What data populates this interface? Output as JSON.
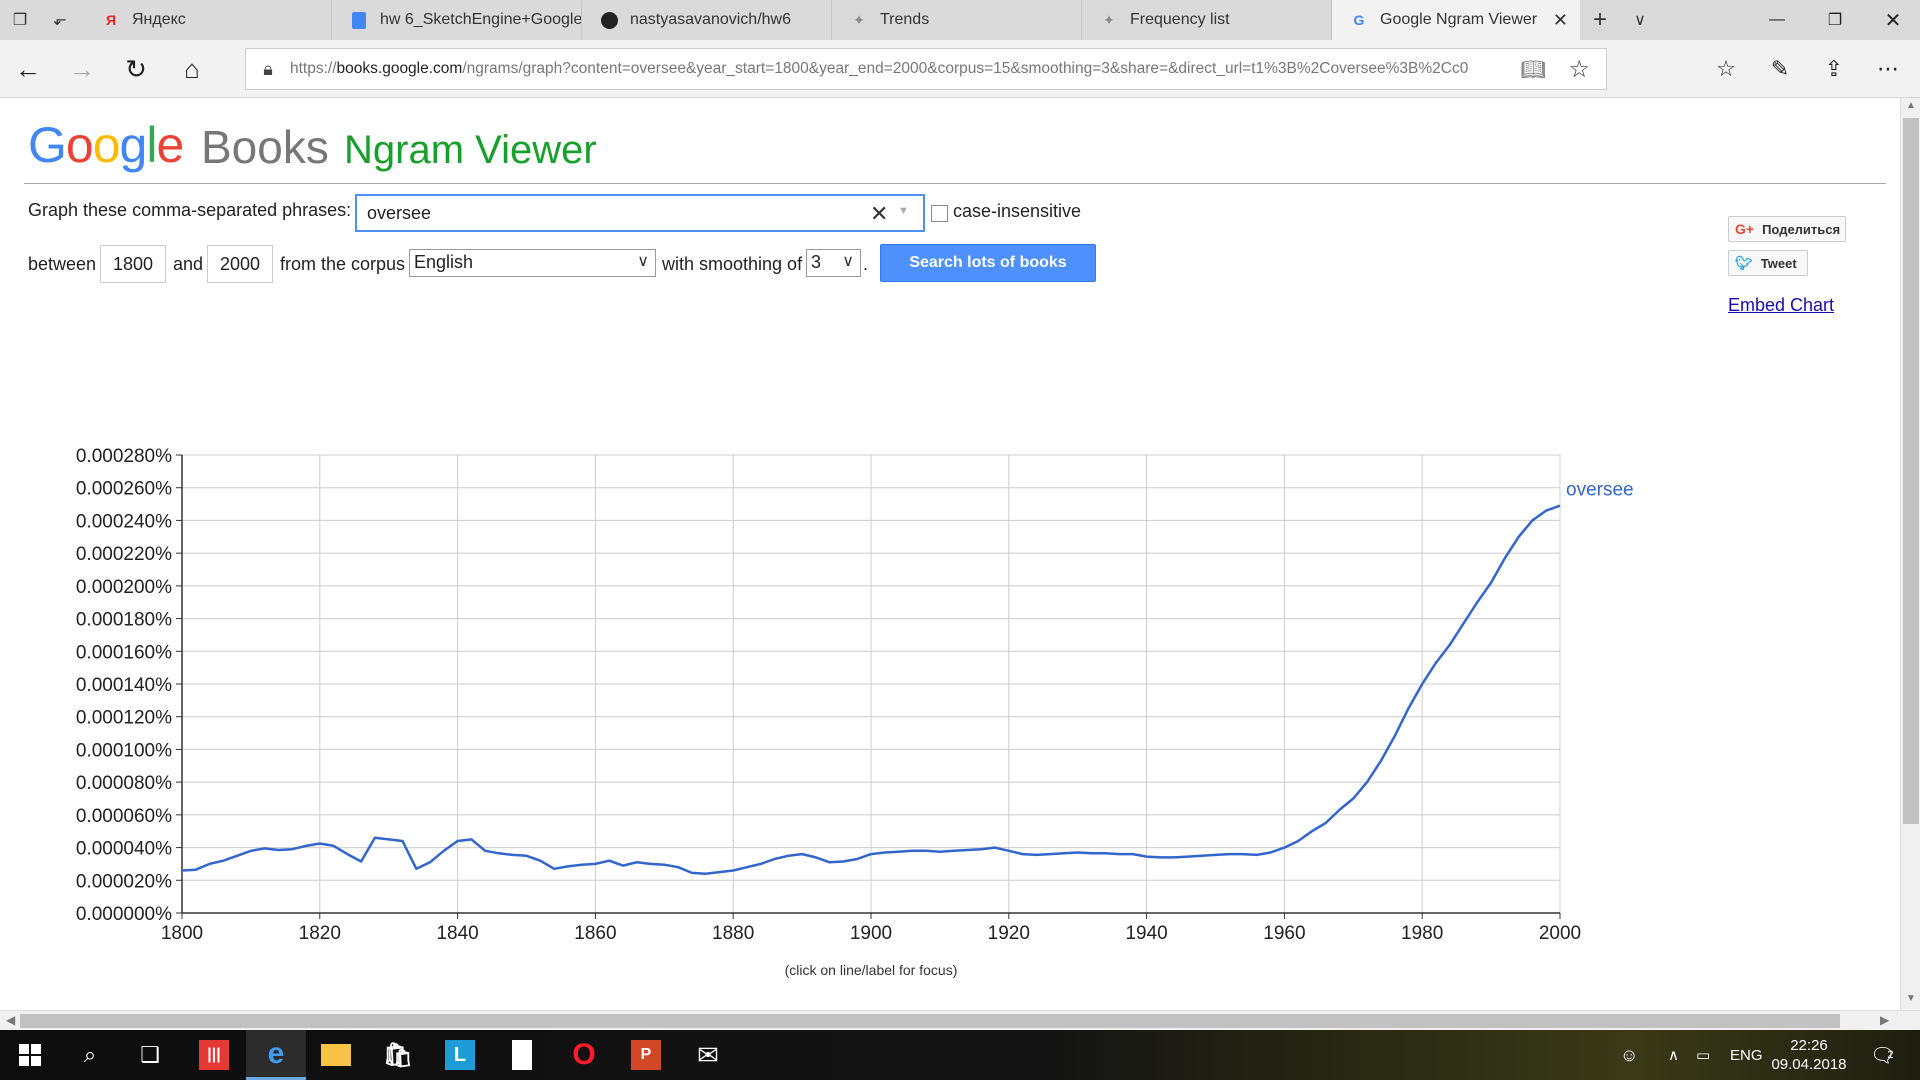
{
  "browser": {
    "tabs": [
      {
        "label": "Яндекс",
        "icon": "yandex-icon"
      },
      {
        "label": "hw 6_SketchEngine+Google",
        "icon": "docs-icon"
      },
      {
        "label": "nastyasavanovich/hw6",
        "icon": "github-icon"
      },
      {
        "label": "Trends",
        "icon": "trends-icon"
      },
      {
        "label": "Frequency list",
        "icon": "trends-icon"
      },
      {
        "label": "Google Ngram Viewer",
        "icon": "google-icon"
      }
    ],
    "url_prefix": "https://",
    "url_host": "books.google.com",
    "url_path": "/ngrams/graph?content=oversee&year_start=1800&year_end=2000&corpus=15&smoothing=3&share=&direct_url=t1%3B%2Coversee%3B%2Cc0"
  },
  "header": {
    "logo_letters": [
      "G",
      "o",
      "o",
      "g",
      "l",
      "e"
    ],
    "logo_colors": [
      "#4285f4",
      "#ea4335",
      "#fbbc05",
      "#4285f4",
      "#34a853",
      "#ea4335"
    ],
    "books": "Books",
    "title": "Ngram Viewer"
  },
  "form": {
    "phrases_label": "Graph these comma-separated phrases:",
    "query": "oversee",
    "case_insensitive_label": "case-insensitive",
    "between_label": "between",
    "year_start": "1800",
    "and_label": "and",
    "year_end": "2000",
    "corpus_label": "from the corpus",
    "corpus": "English",
    "smoothing_label": "with smoothing of",
    "smoothing": "3",
    "period": ".",
    "search_button": "Search lots of books"
  },
  "social": {
    "share": "Поделиться",
    "tweet": "Tweet",
    "embed": "Embed Chart"
  },
  "chart_data": {
    "type": "line",
    "title": "",
    "xlabel": "",
    "ylabel": "",
    "note": "(click on line/label for focus)",
    "xlim": [
      1800,
      2000
    ],
    "ylim": [
      0,
      0.00028
    ],
    "x_ticks": [
      1800,
      1820,
      1840,
      1860,
      1880,
      1900,
      1920,
      1940,
      1960,
      1980,
      2000
    ],
    "y_ticks": [
      "0.000000%",
      "0.000020%",
      "0.000040%",
      "0.000060%",
      "0.000080%",
      "0.000100%",
      "0.000120%",
      "0.000140%",
      "0.000160%",
      "0.000180%",
      "0.000200%",
      "0.000220%",
      "0.000240%",
      "0.000260%",
      "0.000280%"
    ],
    "grid": true,
    "series": [
      {
        "name": "oversee",
        "color": "#3366cc",
        "x": [
          1800,
          1802,
          1804,
          1806,
          1808,
          1810,
          1812,
          1814,
          1816,
          1818,
          1820,
          1822,
          1824,
          1826,
          1828,
          1830,
          1832,
          1834,
          1836,
          1838,
          1840,
          1842,
          1844,
          1846,
          1848,
          1850,
          1852,
          1854,
          1856,
          1858,
          1860,
          1862,
          1864,
          1866,
          1868,
          1870,
          1872,
          1874,
          1876,
          1878,
          1880,
          1882,
          1884,
          1886,
          1888,
          1890,
          1892,
          1894,
          1896,
          1898,
          1900,
          1902,
          1904,
          1906,
          1908,
          1910,
          1912,
          1914,
          1916,
          1918,
          1920,
          1922,
          1924,
          1926,
          1928,
          1930,
          1932,
          1934,
          1936,
          1938,
          1940,
          1942,
          1944,
          1946,
          1948,
          1950,
          1952,
          1954,
          1956,
          1958,
          1960,
          1962,
          1964,
          1966,
          1968,
          1970,
          1972,
          1974,
          1976,
          1978,
          1980,
          1982,
          1984,
          1986,
          1988,
          1990,
          1992,
          1994,
          1996,
          1998,
          2000
        ],
        "y": [
          2.6e-05,
          2.65e-05,
          3e-05,
          3.2e-05,
          3.5e-05,
          3.8e-05,
          3.95e-05,
          3.85e-05,
          3.9e-05,
          4.1e-05,
          4.25e-05,
          4.1e-05,
          3.6e-05,
          3.15e-05,
          4.6e-05,
          4.5e-05,
          4.4e-05,
          2.7e-05,
          3.1e-05,
          3.8e-05,
          4.4e-05,
          4.5e-05,
          3.8e-05,
          3.65e-05,
          3.55e-05,
          3.5e-05,
          3.2e-05,
          2.7e-05,
          2.85e-05,
          2.95e-05,
          3e-05,
          3.2e-05,
          2.9e-05,
          3.1e-05,
          3e-05,
          2.95e-05,
          2.8e-05,
          2.45e-05,
          2.4e-05,
          2.5e-05,
          2.6e-05,
          2.8e-05,
          3e-05,
          3.3e-05,
          3.5e-05,
          3.6e-05,
          3.4e-05,
          3.1e-05,
          3.15e-05,
          3.3e-05,
          3.6e-05,
          3.7e-05,
          3.75e-05,
          3.8e-05,
          3.8e-05,
          3.75e-05,
          3.8e-05,
          3.85e-05,
          3.9e-05,
          4e-05,
          3.8e-05,
          3.6e-05,
          3.55e-05,
          3.6e-05,
          3.65e-05,
          3.7e-05,
          3.65e-05,
          3.65e-05,
          3.6e-05,
          3.6e-05,
          3.45e-05,
          3.4e-05,
          3.4e-05,
          3.45e-05,
          3.5e-05,
          3.55e-05,
          3.6e-05,
          3.6e-05,
          3.55e-05,
          3.7e-05,
          4e-05,
          4.4e-05,
          5e-05,
          5.5e-05,
          6.3e-05,
          7e-05,
          8e-05,
          9.3e-05,
          0.000108,
          0.000125,
          0.00014,
          0.000153,
          0.000164,
          0.000177,
          0.00019,
          0.000202,
          0.000217,
          0.00023,
          0.00024,
          0.000246,
          0.000249
        ]
      }
    ]
  },
  "taskbar": {
    "lang": "ENG",
    "time": "22:26",
    "date": "09.04.2018",
    "notification_count": "2"
  }
}
